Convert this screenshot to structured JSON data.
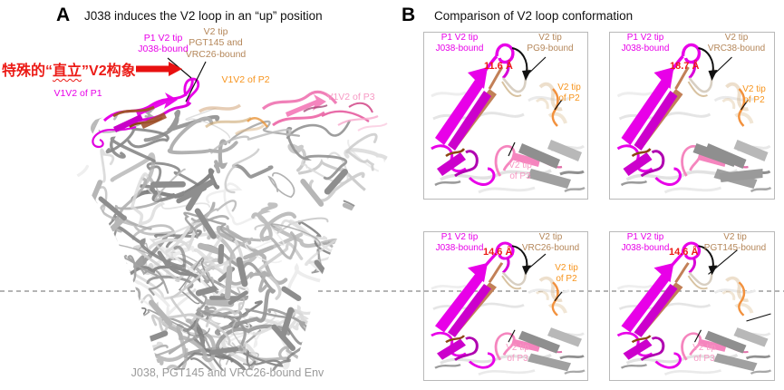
{
  "figure": {
    "panel_a": {
      "letter": "A",
      "title": "J038 induces the V2 loop in an “up” position",
      "annotation": {
        "prefix": "特殊的“",
        "emphasis": "直立",
        "suffix": "”V2构象"
      },
      "labels": {
        "p1_v2_tip": [
          "P1 V2 tip",
          "J038-bound"
        ],
        "pgt145_vrc26": [
          "V2 tip",
          "PGT145 and",
          "VRC26-bound"
        ],
        "v1v2_p2": "V1V2 of P2",
        "v1v2_p1": "V1V2 of P1",
        "v1v2_p3": "V1V2 of P3"
      },
      "caption": "J038, PGT145 and VRC26-bound Env"
    },
    "panel_b": {
      "letter": "B",
      "title": "Comparison of V2 loop conformation",
      "subpanels": [
        {
          "name": "top-left",
          "j038": [
            "P1 V2 tip",
            "J038-bound"
          ],
          "compare": [
            "V2 tip",
            "PG9-bound"
          ],
          "distance": "11.6 Å",
          "p2": [
            "V2 tip",
            "of P2"
          ],
          "p3": [
            "V2 tip",
            "of P3"
          ]
        },
        {
          "name": "top-right",
          "j038": [
            "P1 V2 tip",
            "J038-bound"
          ],
          "compare": [
            "V2 tip",
            "VRC38-bound"
          ],
          "distance": "18.7 Å",
          "p2": [
            "V2 tip",
            "of P2"
          ]
        },
        {
          "name": "bottom-left",
          "j038": [
            "P1 V2 tip",
            "J038-bound"
          ],
          "compare": [
            "V2 tip",
            "VRC26-bound"
          ],
          "distance": "14.6 Å",
          "p2": [
            "V2 tip",
            "of P2"
          ],
          "p3": [
            "V2 tip",
            "of P3"
          ]
        },
        {
          "name": "bottom-right",
          "j038": [
            "P1 V2 tip",
            "J038-bound"
          ],
          "compare": [
            "V2 tip",
            "PGT145-bound"
          ],
          "distance": "14.6 Å",
          "p3": [
            "V2 tip",
            "of P3"
          ]
        }
      ]
    },
    "colors": {
      "magenta": "#E800E8",
      "tan_label": "#B5875A",
      "orange": "#F7941D",
      "pink": "#F799C4",
      "red": "#EC1B16",
      "caption_gray": "#9A9A9A"
    }
  }
}
